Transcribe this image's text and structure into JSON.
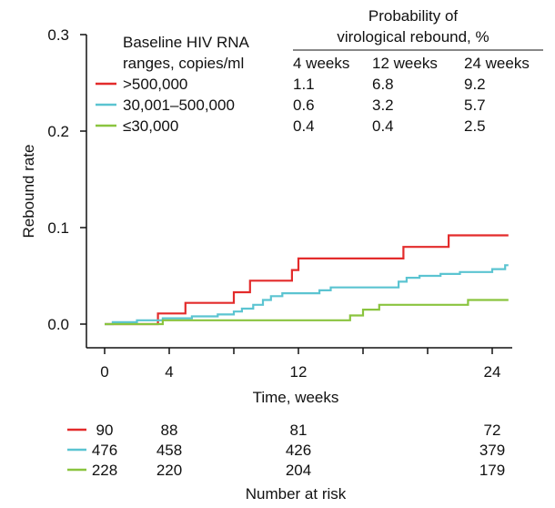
{
  "chart_data": {
    "type": "line",
    "subtype": "kaplan-meier-step",
    "xlabel": "Time, weeks",
    "ylabel": "Rebound rate",
    "xlim": [
      0,
      25
    ],
    "ylim": [
      0,
      0.3
    ],
    "x_ticks": [
      0,
      4,
      12,
      24
    ],
    "x_minor_ticks": [
      8,
      16,
      20
    ],
    "y_ticks": [
      "0.0",
      "0.1",
      "0.2",
      "0.3"
    ],
    "legend": {
      "title_line1": "Baseline HIV RNA",
      "title_line2": "ranges, copies/ml",
      "prob_header_line1": "Probability of",
      "prob_header_line2": "virological rebound, %",
      "prob_columns": [
        "4 weeks",
        "12 weeks",
        "24 weeks"
      ],
      "placement": "top-right"
    },
    "series": [
      {
        "name": ">500,000",
        "color": "#e32b2b",
        "probabilities": [
          "1.1",
          "6.8",
          "9.2"
        ],
        "points": [
          [
            0,
            0
          ],
          [
            3.3,
            0
          ],
          [
            3.3,
            0.011
          ],
          [
            5,
            0.011
          ],
          [
            5,
            0.022
          ],
          [
            8,
            0.022
          ],
          [
            8,
            0.033
          ],
          [
            9,
            0.033
          ],
          [
            9,
            0.045
          ],
          [
            11.6,
            0.045
          ],
          [
            11.6,
            0.056
          ],
          [
            12,
            0.056
          ],
          [
            12,
            0.068
          ],
          [
            18.5,
            0.068
          ],
          [
            18.5,
            0.08
          ],
          [
            21.3,
            0.08
          ],
          [
            21.3,
            0.092
          ],
          [
            25,
            0.092
          ]
        ]
      },
      {
        "name": "30,001–500,000",
        "color": "#5bc4d1",
        "probabilities": [
          "0.6",
          "3.2",
          "5.7"
        ],
        "points": [
          [
            0,
            0
          ],
          [
            0.5,
            0
          ],
          [
            0.5,
            0.002
          ],
          [
            2,
            0.002
          ],
          [
            2,
            0.004
          ],
          [
            3.6,
            0.004
          ],
          [
            3.6,
            0.006
          ],
          [
            5.4,
            0.006
          ],
          [
            5.4,
            0.008
          ],
          [
            7,
            0.008
          ],
          [
            7,
            0.01
          ],
          [
            8,
            0.01
          ],
          [
            8,
            0.013
          ],
          [
            8.5,
            0.013
          ],
          [
            8.5,
            0.016
          ],
          [
            9.2,
            0.016
          ],
          [
            9.2,
            0.02
          ],
          [
            9.8,
            0.02
          ],
          [
            9.8,
            0.025
          ],
          [
            10.3,
            0.025
          ],
          [
            10.3,
            0.029
          ],
          [
            11,
            0.029
          ],
          [
            11,
            0.032
          ],
          [
            13.3,
            0.032
          ],
          [
            13.3,
            0.035
          ],
          [
            14,
            0.035
          ],
          [
            14,
            0.038
          ],
          [
            18.2,
            0.038
          ],
          [
            18.2,
            0.044
          ],
          [
            18.7,
            0.044
          ],
          [
            18.7,
            0.048
          ],
          [
            19.5,
            0.048
          ],
          [
            19.5,
            0.05
          ],
          [
            20.8,
            0.05
          ],
          [
            20.8,
            0.052
          ],
          [
            22,
            0.052
          ],
          [
            22,
            0.054
          ],
          [
            24,
            0.054
          ],
          [
            24,
            0.057
          ],
          [
            24.8,
            0.057
          ],
          [
            24.8,
            0.061
          ],
          [
            25,
            0.061
          ]
        ]
      },
      {
        "name": "≤30,000",
        "color": "#8ac43f",
        "probabilities": [
          "0.4",
          "0.4",
          "2.5"
        ],
        "points": [
          [
            0,
            0
          ],
          [
            3.6,
            0
          ],
          [
            3.6,
            0.004
          ],
          [
            15.2,
            0.004
          ],
          [
            15.2,
            0.009
          ],
          [
            16,
            0.009
          ],
          [
            16,
            0.015
          ],
          [
            17,
            0.015
          ],
          [
            17,
            0.02
          ],
          [
            22.5,
            0.02
          ],
          [
            22.5,
            0.025
          ],
          [
            25,
            0.025
          ]
        ]
      }
    ],
    "risk_table": {
      "title": "Number at risk",
      "rows": [
        {
          "color": "#e32b2b",
          "values": [
            "90",
            "88",
            "81",
            "72"
          ]
        },
        {
          "color": "#5bc4d1",
          "values": [
            "476",
            "458",
            "426",
            "379"
          ]
        },
        {
          "color": "#8ac43f",
          "values": [
            "228",
            "220",
            "204",
            "179"
          ]
        }
      ]
    }
  }
}
